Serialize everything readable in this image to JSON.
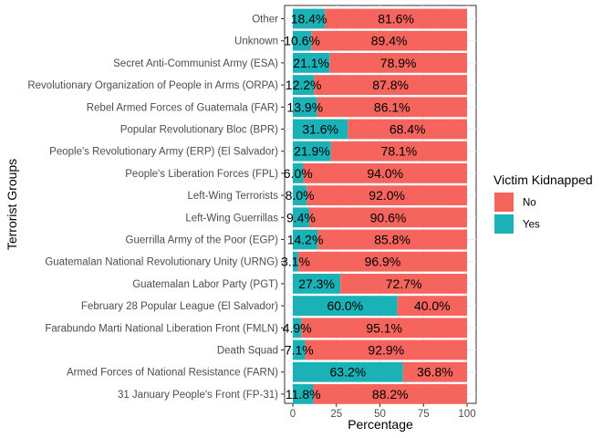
{
  "chart_data": {
    "type": "bar",
    "orientation": "horizontal",
    "stacked": true,
    "xlabel": "Percentage",
    "ylabel": "Terrorist Groups",
    "xlim": [
      0,
      100
    ],
    "xticks": [
      "0",
      "25",
      "50",
      "75",
      "100"
    ],
    "grid": true,
    "legend_position": "right",
    "legend_title": "Victim Kidnapped",
    "categories": [
      "Other",
      "Unknown",
      "Secret Anti-Communist Army (ESA)",
      "Revolutionary Organization of People in Arms (ORPA)",
      "Rebel Armed Forces of Guatemala (FAR)",
      "Popular Revolutionary Bloc (BPR)",
      "People's Revolutionary Army (ERP) (El Salvador)",
      "People's Liberation Forces (FPL)",
      "Left-Wing Terrorists",
      "Left-Wing Guerrillas",
      "Guerrilla Army of the Poor (EGP)",
      "Guatemalan National Revolutionary Unity (URNG)",
      "Guatemalan Labor Party (PGT)",
      "February 28 Popular League (El Salvador)",
      "Farabundo Marti National Liberation Front (FMLN)",
      "Death Squad",
      "Armed Forces of National Resistance (FARN)",
      "31 January People's Front (FP-31)"
    ],
    "series": [
      {
        "name": "Yes",
        "color": "#1AB2B6",
        "values": [
          18.4,
          10.6,
          21.1,
          12.2,
          13.9,
          31.6,
          21.9,
          6.0,
          8.0,
          9.4,
          14.2,
          3.1,
          27.3,
          60.0,
          4.9,
          7.1,
          63.2,
          11.8
        ],
        "labels": [
          "18.4%",
          "10.6%",
          "21.1%",
          "12.2%",
          "13.9%",
          "31.6%",
          "21.9%",
          "6.0%",
          "8.0%",
          "9.4%",
          "14.2%",
          "3.1%",
          "27.3%",
          "60.0%",
          "4.9%",
          "7.1%",
          "63.2%",
          "11.8%"
        ]
      },
      {
        "name": "No",
        "color": "#F5655E",
        "values": [
          81.6,
          89.4,
          78.9,
          87.8,
          86.1,
          68.4,
          78.1,
          94.0,
          92.0,
          90.6,
          85.8,
          96.9,
          72.7,
          40.0,
          95.1,
          92.9,
          36.8,
          88.2
        ],
        "labels": [
          "81.6%",
          "89.4%",
          "78.9%",
          "87.8%",
          "86.1%",
          "68.4%",
          "78.1%",
          "94.0%",
          "92.0%",
          "90.6%",
          "85.8%",
          "96.9%",
          "72.7%",
          "40.0%",
          "95.1%",
          "92.9%",
          "36.8%",
          "88.2%"
        ]
      }
    ],
    "legend_order": [
      "No",
      "Yes"
    ]
  }
}
